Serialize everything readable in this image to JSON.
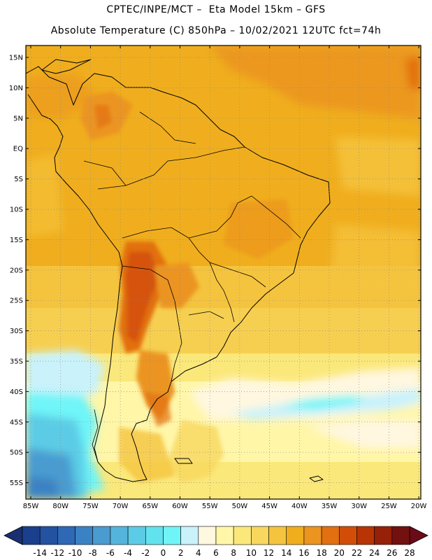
{
  "header": {
    "line1": "CPTEC/INPE/MCT –  Eta Model 15km – GFS",
    "line2": "Absolute Temperature (C) 850hPa – 10/02/2021 12UTC fct=74h"
  },
  "map": {
    "lat_labels": [
      "15N",
      "10N",
      "5N",
      "EQ",
      "5S",
      "10S",
      "15S",
      "20S",
      "25S",
      "30S",
      "35S",
      "40S",
      "45S",
      "50S",
      "55S"
    ],
    "lon_labels": [
      "85W",
      "80W",
      "75W",
      "70W",
      "65W",
      "60W",
      "55W",
      "50W",
      "45W",
      "40W",
      "35W",
      "30W",
      "25W",
      "20W"
    ],
    "grid": "dotted"
  },
  "colorbar": {
    "labels": [
      "-14",
      "-12",
      "-10",
      "-8",
      "-6",
      "-4",
      "-2",
      "0",
      "2",
      "4",
      "6",
      "8",
      "10",
      "12",
      "14",
      "16",
      "18",
      "20",
      "22",
      "24",
      "26",
      "28"
    ],
    "colors": [
      "#1a3f8c",
      "#2352a0",
      "#2f68b4",
      "#3b82c4",
      "#4a9bd0",
      "#55b4dc",
      "#5ccce6",
      "#62e2ef",
      "#6ff5f8",
      "#c9f2fb",
      "#fff7e0",
      "#fff6a8",
      "#fbe87a",
      "#f8d75e",
      "#f5c43e",
      "#f0ae1e",
      "#eb9420",
      "#e26f10",
      "#d24e08",
      "#b83404",
      "#962008",
      "#731010"
    ],
    "under_color": "#1a2f70",
    "over_color": "#6b0b18"
  }
}
